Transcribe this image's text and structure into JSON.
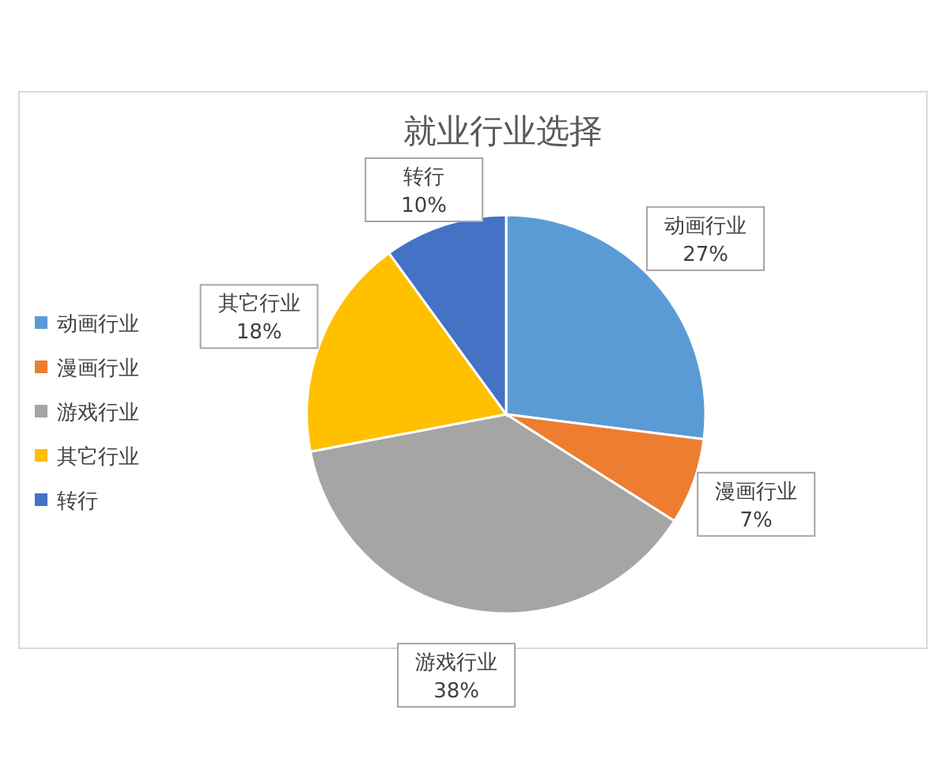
{
  "chart_data": {
    "type": "pie",
    "title": "就业行业选择",
    "categories": [
      "动画行业",
      "漫画行业",
      "游戏行业",
      "其它行业",
      "转行"
    ],
    "values": [
      27,
      7,
      38,
      18,
      10
    ],
    "value_labels": [
      "27%",
      "7%",
      "38%",
      "18%",
      "10%"
    ],
    "colors": [
      "#5b9bd5",
      "#ed7d31",
      "#a5a5a5",
      "#ffc000",
      "#4472c4"
    ],
    "legend": "left"
  }
}
